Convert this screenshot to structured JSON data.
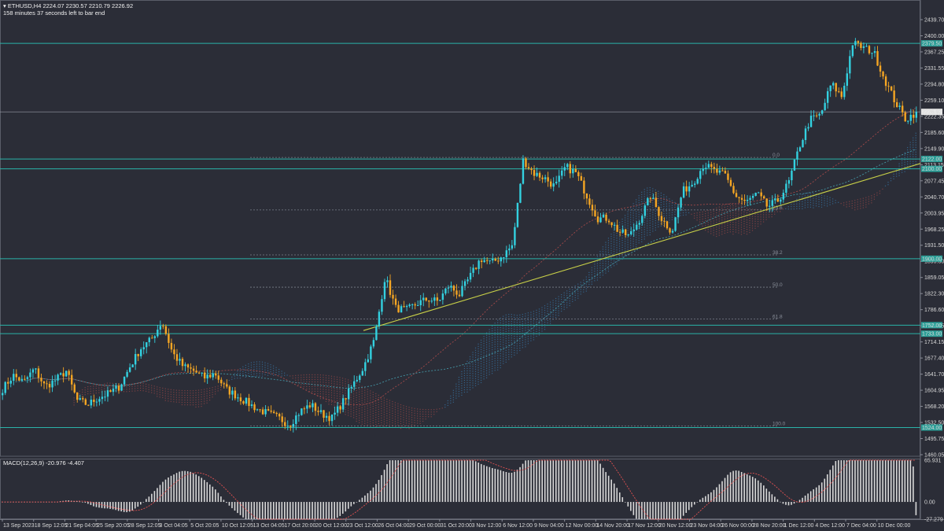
{
  "header": {
    "symbol_line": "ETHUSD,H4  2224.07 2230.57 2210.79 2226.92",
    "countdown": "158 minutes 37 seconds left to bar end",
    "macd_label": "MACD(12,26,9) -20.976 -4.407"
  },
  "colors": {
    "background": "#2b2d37",
    "bull_candle": "#33d1e0",
    "bear_candle": "#f5a623",
    "level_line": "#2bb3a8",
    "trendline": "#c8d048",
    "macd_hist": "#d9d9d9",
    "macd_signal": "#e05050",
    "cloud_up": "#3a8fd0",
    "cloud_down": "#c0504d",
    "ma_slow": "#4ab0c0"
  },
  "chart_data": [
    {
      "type": "candlestick",
      "symbol": "ETHUSD",
      "timeframe": "H4",
      "ylim": [
        1460.05,
        2476.0
      ],
      "y_ticks": [
        "2439.70",
        "2400.00",
        "2367.25",
        "2331.55",
        "2294.80",
        "2259.10",
        "2222.35",
        "2185.60",
        "2149.90",
        "2113.15",
        "2077.45",
        "2040.70",
        "2003.95",
        "1968.25",
        "1931.50",
        "1895.80",
        "1859.05",
        "1822.30",
        "1786.60",
        "1749.85",
        "1714.15",
        "1677.40",
        "1641.70",
        "1604.95",
        "1568.20",
        "1532.50",
        "1495.75",
        "1460.05"
      ],
      "x_ticks": [
        "13 Sep 2023",
        "18 Sep 12:05",
        "21 Sep 04:05",
        "25 Sep 20:05",
        "28 Sep 12:05",
        "3 Oct 04:05",
        "5 Oct 20:05",
        "10 Oct 12:05",
        "13 Oct 04:05",
        "17 Oct 20:00",
        "20 Oct 12:00",
        "23 Oct 12:00",
        "26 Oct 04:00",
        "29 Oct 00:00",
        "31 Oct 20:00",
        "3 Nov 12:00",
        "6 Nov 12:00",
        "9 Nov 04:00",
        "12 Nov 00:00",
        "14 Nov 20:00",
        "17 Nov 12:00",
        "20 Nov 12:00",
        "23 Nov 04:00",
        "26 Nov 00:00",
        "28 Nov 20:00",
        "1 Dec 12:00",
        "4 Dec 12:00",
        "7 Dec 04:00",
        "10 Dec 00:00"
      ],
      "close_path": [
        1610,
        1640,
        1625,
        1655,
        1615,
        1630,
        1650,
        1585,
        1575,
        1590,
        1600,
        1615,
        1660,
        1700,
        1720,
        1760,
        1690,
        1660,
        1650,
        1635,
        1645,
        1610,
        1595,
        1580,
        1565,
        1555,
        1545,
        1530,
        1560,
        1575,
        1555,
        1545,
        1580,
        1620,
        1660,
        1720,
        1860,
        1790,
        1785,
        1800,
        1810,
        1805,
        1840,
        1820,
        1860,
        1900,
        1890,
        1905,
        1930,
        2120,
        2090,
        2080,
        2060,
        2105,
        2090,
        2040,
        1990,
        1990,
        1960,
        1950,
        1990,
        2040,
        1990,
        1960,
        2050,
        2070,
        2110,
        2095,
        2085,
        2040,
        2025,
        2045,
        2015,
        2030,
        2070,
        2150,
        2210,
        2220,
        2290,
        2260,
        2380,
        2370,
        2360,
        2300,
        2250,
        2210,
        2226.92
      ],
      "current_price": 2226.92,
      "levels": [
        {
          "price": 2379.5,
          "label": "2379.50"
        },
        {
          "price": 2122.0,
          "label": "2122.00"
        },
        {
          "price": 2100.0,
          "label": "2100.00"
        },
        {
          "price": 1900.0,
          "label": "1900.00"
        },
        {
          "price": 1752.0,
          "label": "1752.00"
        },
        {
          "price": 1733.0,
          "label": "1733.00"
        },
        {
          "price": 1524.0,
          "label": "1524.00"
        }
      ],
      "fib_levels": [
        {
          "price": 2122.0,
          "label": "0.0"
        },
        {
          "price": 2005.0,
          "label": "23.6"
        },
        {
          "price": 1905.0,
          "label": "38.2"
        },
        {
          "price": 1833.0,
          "label": "50.0"
        },
        {
          "price": 1762.0,
          "label": "61.8"
        },
        {
          "price": 1524.0,
          "label": "100.0"
        }
      ]
    },
    {
      "type": "bar",
      "indicator": "MACD(12,26,9)",
      "ylim": [
        -27.279,
        65.931
      ],
      "y_ticks": [
        "65.931",
        "0.00",
        "-27.279"
      ],
      "macd_value": -20.976,
      "signal_value": -4.407
    }
  ]
}
